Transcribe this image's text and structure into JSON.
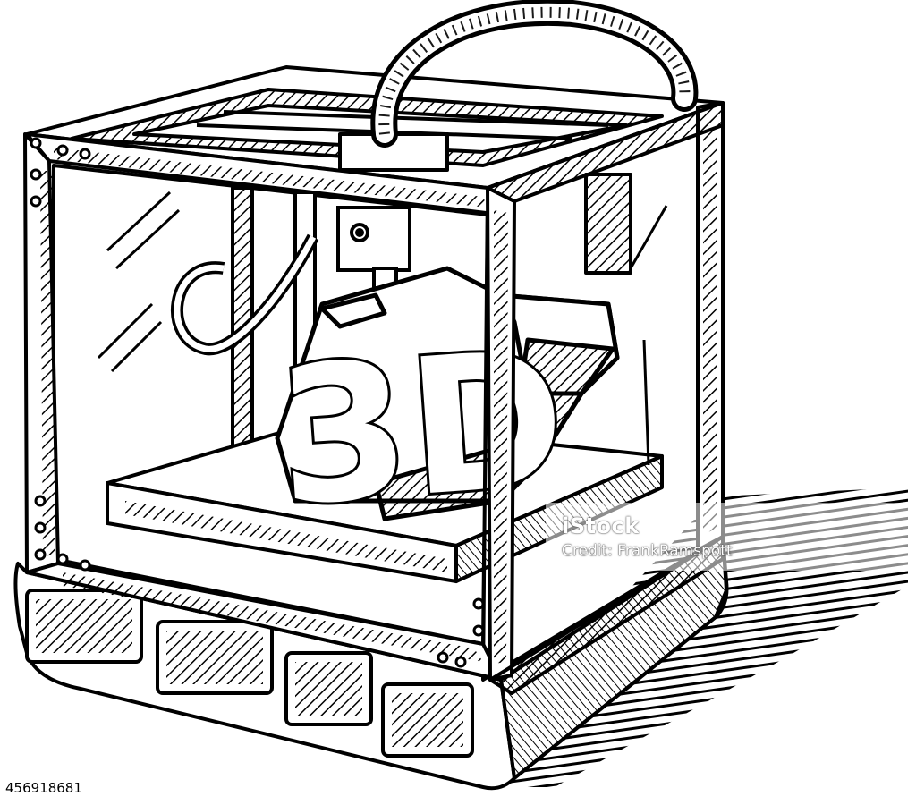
{
  "image": {
    "subject": "3d-printer",
    "style": "black-and-white-ink-sketch",
    "colors": {
      "ink": "#000000",
      "paper": "#ffffff"
    },
    "object_label": {
      "text": "3D"
    }
  },
  "watermark": {
    "logo": "iStock",
    "credit": "Credit: FrankRamspott"
  },
  "image_id": "456918681"
}
